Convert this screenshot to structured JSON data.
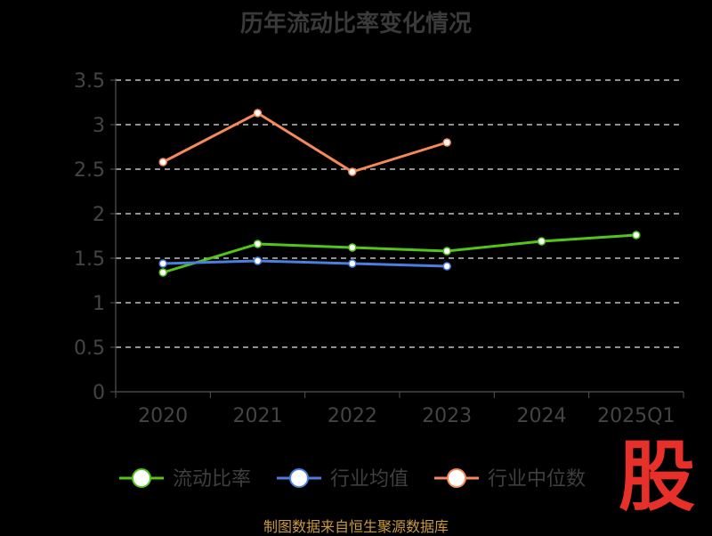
{
  "title": "历年流动比率变化情况",
  "source": "制图数据来自恒生聚源数据库",
  "logo_text": "股",
  "chart_data": {
    "type": "line",
    "categories": [
      "2020",
      "2021",
      "2022",
      "2023",
      "2024",
      "2025Q1"
    ],
    "ylim": [
      0,
      3.5
    ],
    "yticks": [
      "0",
      "0.5",
      "1",
      "1.5",
      "2",
      "2.5",
      "3",
      "3.5"
    ],
    "grid": true,
    "legend_position": "bottom",
    "series": [
      {
        "name": "流动比率",
        "color": "#52c41a",
        "values": [
          1.34,
          1.66,
          1.62,
          1.58,
          1.69,
          1.76
        ]
      },
      {
        "name": "行业均值",
        "color": "#4a7fe0",
        "values": [
          1.44,
          1.47,
          1.44,
          1.41,
          null,
          null
        ]
      },
      {
        "name": "行业中位数",
        "color": "#f5895a",
        "values": [
          2.58,
          3.13,
          2.47,
          2.8,
          null,
          null
        ]
      }
    ]
  }
}
